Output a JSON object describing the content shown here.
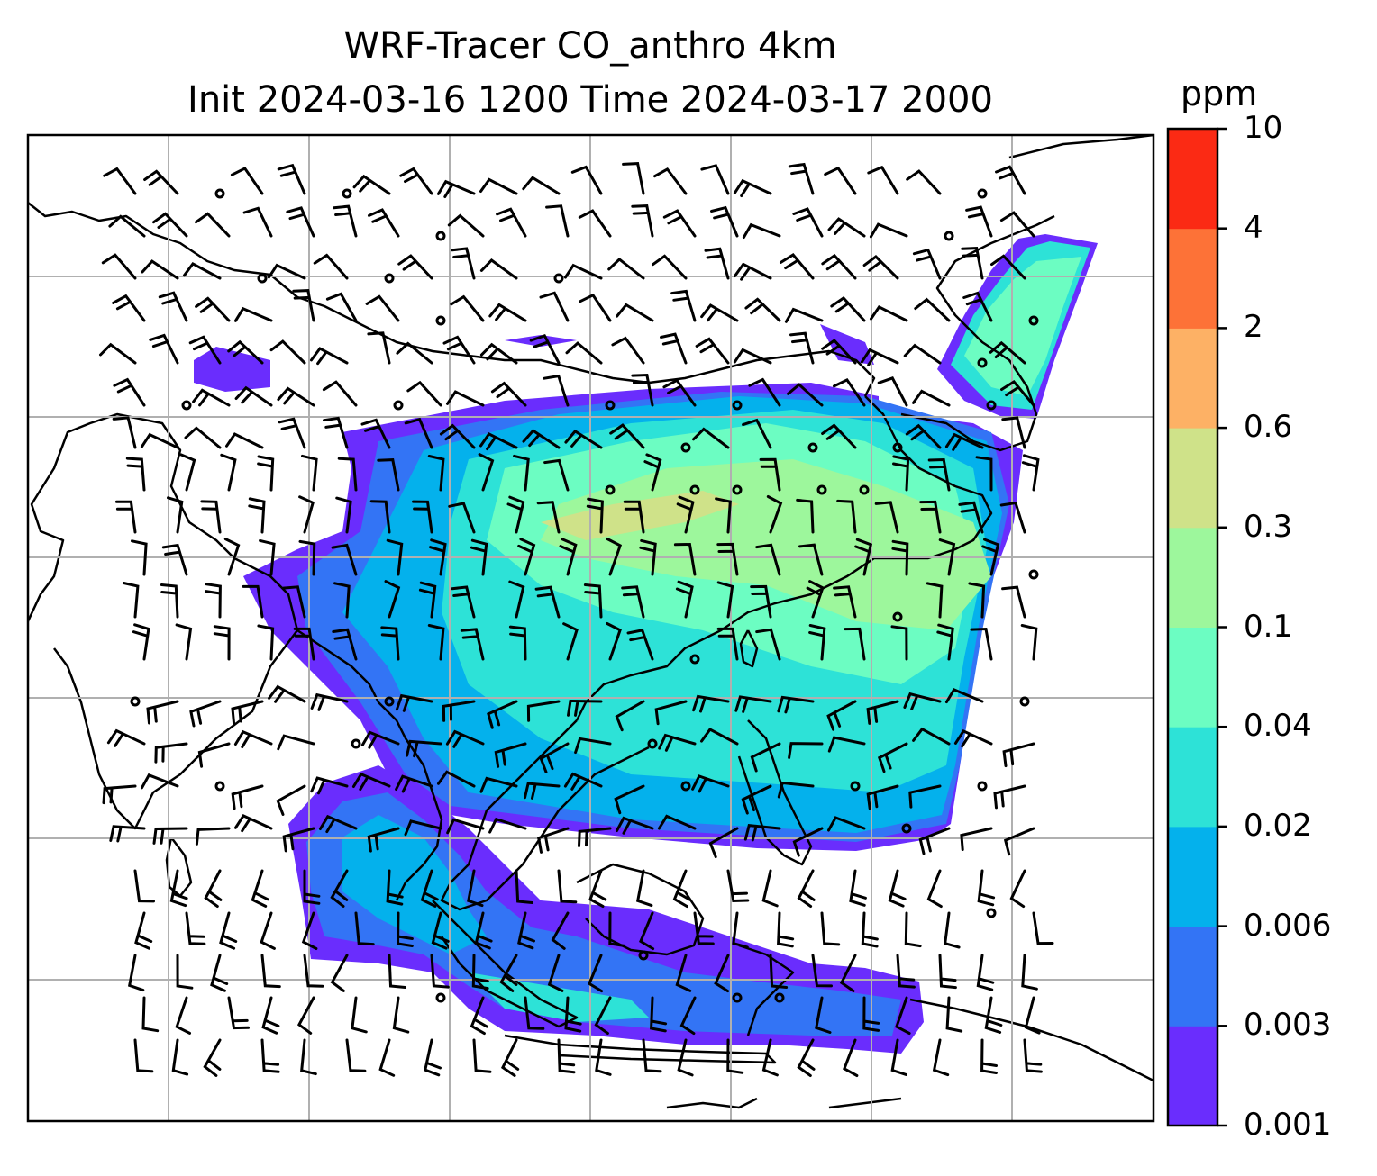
{
  "title": {
    "line1": "WRF-Tracer CO_anthro 4km",
    "line2": "Init 2024-03-16 1200 Time 2024-03-17 2000"
  },
  "colorbar": {
    "unit": "ppm",
    "levels": [
      "0.001",
      "0.003",
      "0.006",
      "0.02",
      "0.04",
      "0.1",
      "0.3",
      "0.6",
      "2",
      "4",
      "10"
    ],
    "colors": [
      "#6a2dfd",
      "#3374f5",
      "#04b1ec",
      "#2de2d7",
      "#6cfdc2",
      "#9df79c",
      "#cfe289",
      "#fdb165",
      "#fd7237",
      "#fb2a14"
    ]
  },
  "map": {
    "field": "CO_anthro tracer concentration with wind barbs",
    "gridlines": true,
    "coastlines": true
  }
}
